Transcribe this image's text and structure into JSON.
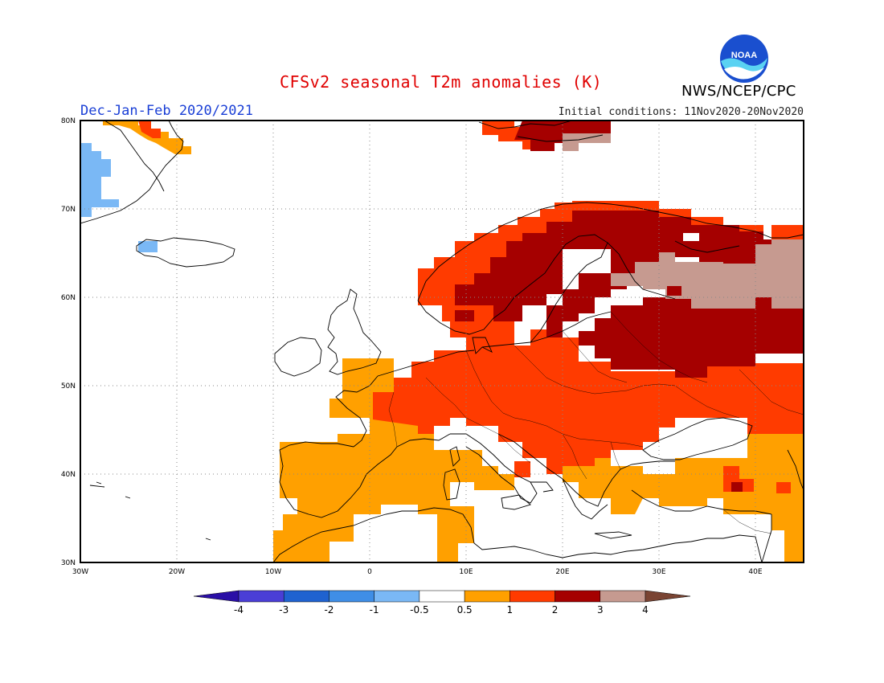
{
  "header": {
    "title": "CFSv2 seasonal T2m anomalies (K)",
    "season": "Dec-Jan-Feb 2020/2021",
    "initial_conditions": "Initial conditions: 11Nov2020-20Nov2020",
    "agency": "NWS/NCEP/CPC",
    "logo_text": "NOAA"
  },
  "map": {
    "region": "Europe",
    "lon_range": [
      -30,
      45
    ],
    "lat_range": [
      30,
      80
    ],
    "lon_ticks": [
      "30W",
      "20W",
      "10W",
      "0",
      "10E",
      "20E",
      "30E",
      "40E"
    ],
    "lat_ticks": [
      "80N",
      "70N",
      "60N",
      "50N",
      "40N",
      "30N"
    ],
    "grid": "dotted"
  },
  "colorbar": {
    "labels": [
      "-4",
      "-3",
      "-2",
      "-1",
      "-0.5",
      "0.5",
      "1",
      "2",
      "3",
      "4"
    ],
    "colors": [
      "#2a0fa6",
      "#4a3ed6",
      "#1f62d0",
      "#3f8ee6",
      "#7ab8f5",
      "#ffffff",
      "#ffa000",
      "#ff3b00",
      "#a50000",
      "#c69a90",
      "#7a4433"
    ]
  },
  "anomaly_regions": [
    {
      "name": "Greenland coast",
      "class": "-1 to -0.5",
      "color": "#7ab8f5"
    },
    {
      "name": "Iberia & North Africa",
      "class": "0.5 to 1",
      "color": "#ffa000"
    },
    {
      "name": "Central Europe",
      "class": "1 to 2",
      "color": "#ff3b00"
    },
    {
      "name": "Scandinavia & Baltic",
      "class": "2 to 3",
      "color": "#a50000"
    },
    {
      "name": "Northwest Russia",
      "class": "3 to 4",
      "color": "#c69a90"
    }
  ]
}
